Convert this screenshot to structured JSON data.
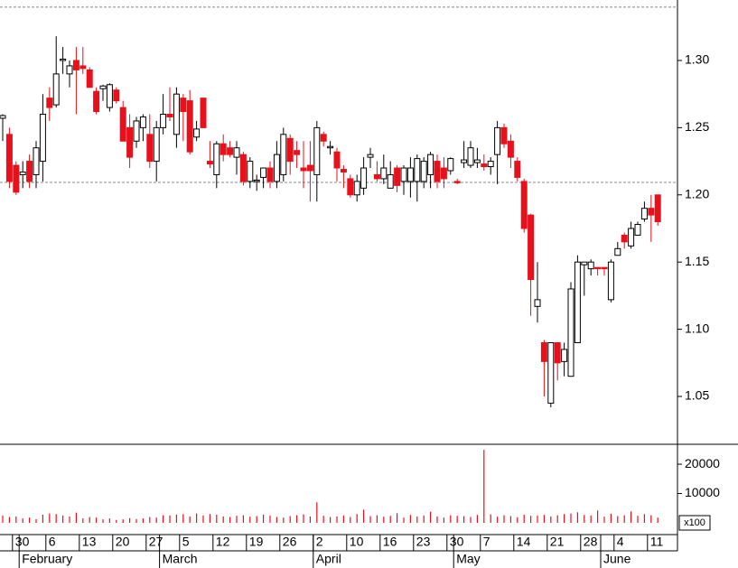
{
  "chart_data": {
    "type": "candlestick",
    "categories": [
      null,
      null,
      "30",
      null,
      null,
      null,
      null,
      "6",
      null,
      null,
      null,
      null,
      "13",
      null,
      null,
      null,
      null,
      "20",
      null,
      null,
      null,
      null,
      "27",
      null,
      null,
      null,
      null,
      "5",
      null,
      null,
      null,
      null,
      "12",
      null,
      null,
      null,
      null,
      "19",
      null,
      null,
      null,
      null,
      "26",
      null,
      null,
      null,
      null,
      "2",
      null,
      null,
      null,
      null,
      "10",
      null,
      null,
      null,
      null,
      "16",
      null,
      null,
      null,
      null,
      "23",
      null,
      null,
      null,
      null,
      "30",
      null,
      null,
      null,
      null,
      "7",
      null,
      null,
      null,
      null,
      "14",
      null,
      null,
      null,
      null,
      "21",
      null,
      null,
      null,
      null,
      "28",
      null,
      null,
      null,
      null,
      "4",
      null,
      null,
      null,
      null,
      "11",
      null
    ],
    "months": [
      null,
      null,
      null,
      "February",
      null,
      null,
      null,
      null,
      null,
      null,
      null,
      null,
      null,
      null,
      null,
      null,
      null,
      null,
      null,
      null,
      null,
      null,
      null,
      null,
      "March",
      null,
      null,
      null,
      null,
      null,
      null,
      null,
      null,
      null,
      null,
      null,
      null,
      null,
      null,
      null,
      null,
      null,
      null,
      null,
      null,
      null,
      null,
      "April",
      null,
      null,
      null,
      null,
      null,
      null,
      null,
      null,
      null,
      null,
      null,
      null,
      null,
      null,
      null,
      null,
      null,
      null,
      null,
      null,
      "May",
      null,
      null,
      null,
      null,
      null,
      null,
      null,
      null,
      null,
      null,
      null,
      null,
      null,
      null,
      null,
      null,
      null,
      null,
      null,
      null,
      null,
      "June",
      null,
      null,
      null,
      null,
      null,
      null,
      null,
      null
    ],
    "open": [
      1.257,
      1.245,
      1.222,
      1.215,
      1.225,
      1.215,
      1.225,
      1.272,
      1.267,
      1.3,
      1.29,
      1.3,
      1.296,
      1.293,
      1.277,
      1.279,
      1.265,
      1.278,
      1.265,
      1.25,
      1.24,
      1.25,
      1.245,
      1.225,
      1.25,
      1.26,
      1.245,
      1.272,
      1.27,
      1.243,
      1.272,
      1.225,
      1.215,
      1.238,
      1.235,
      1.228,
      1.23,
      1.21,
      1.21,
      1.213,
      1.22,
      1.21,
      1.215,
      1.242,
      1.233,
      1.22,
      1.222,
      1.215,
      1.245,
      1.235,
      1.232,
      1.219,
      1.212,
      1.2,
      1.205,
      1.228,
      1.215,
      1.212,
      1.205,
      1.22,
      1.21,
      1.21,
      1.21,
      1.21,
      1.215,
      1.225,
      1.22,
      1.218,
      1.21,
      1.224,
      1.222,
      1.224,
      1.223,
      1.221,
      1.23,
      1.25,
      1.24,
      1.225,
      1.21,
      1.185,
      1.117,
      1.09,
      1.045,
      1.09,
      1.076,
      1.065,
      1.09,
      1.148,
      1.145,
      1.146,
      1.146,
      1.122,
      1.155,
      1.17,
      1.162,
      1.17,
      1.182,
      1.19,
      1.2
    ],
    "high": [
      1.26,
      1.25,
      1.225,
      1.225,
      1.23,
      1.24,
      1.275,
      1.28,
      1.318,
      1.31,
      1.3,
      1.31,
      1.31,
      1.295,
      1.28,
      1.282,
      1.283,
      1.28,
      1.27,
      1.26,
      1.258,
      1.26,
      1.26,
      1.255,
      1.275,
      1.28,
      1.28,
      1.275,
      1.278,
      1.255,
      1.272,
      1.24,
      1.24,
      1.245,
      1.24,
      1.24,
      1.232,
      1.228,
      1.215,
      1.22,
      1.225,
      1.24,
      1.25,
      1.245,
      1.24,
      1.24,
      1.24,
      1.255,
      1.247,
      1.24,
      1.235,
      1.222,
      1.215,
      1.215,
      1.228,
      1.235,
      1.225,
      1.23,
      1.225,
      1.222,
      1.222,
      1.228,
      1.23,
      1.228,
      1.232,
      1.23,
      1.228,
      1.228,
      1.212,
      1.24,
      1.24,
      1.235,
      1.23,
      1.228,
      1.255,
      1.253,
      1.245,
      1.228,
      1.212,
      1.186,
      1.15,
      1.092,
      1.09,
      1.09,
      1.09,
      1.135,
      1.155,
      1.15,
      1.152,
      1.146,
      1.146,
      1.152,
      1.165,
      1.172,
      1.18,
      1.18,
      1.195,
      1.2,
      1.2
    ],
    "low": [
      1.24,
      1.205,
      1.2,
      1.205,
      1.205,
      1.205,
      1.21,
      1.255,
      1.265,
      1.29,
      1.28,
      1.26,
      1.29,
      1.28,
      1.26,
      1.27,
      1.262,
      1.268,
      1.24,
      1.22,
      1.235,
      1.24,
      1.22,
      1.21,
      1.245,
      1.255,
      1.235,
      1.24,
      1.23,
      1.24,
      1.25,
      1.22,
      1.205,
      1.225,
      1.228,
      1.215,
      1.207,
      1.205,
      1.203,
      1.205,
      1.205,
      1.205,
      1.21,
      1.215,
      1.22,
      1.205,
      1.195,
      1.195,
      1.236,
      1.23,
      1.21,
      1.205,
      1.198,
      1.195,
      1.2,
      1.22,
      1.21,
      1.208,
      1.205,
      1.202,
      1.2,
      1.198,
      1.195,
      1.205,
      1.205,
      1.205,
      1.205,
      1.215,
      1.208,
      1.22,
      1.22,
      1.22,
      1.218,
      1.215,
      1.208,
      1.235,
      1.22,
      1.21,
      1.172,
      1.11,
      1.105,
      1.05,
      1.042,
      1.062,
      1.065,
      1.065,
      1.09,
      1.125,
      1.14,
      1.14,
      1.14,
      1.12,
      1.155,
      1.16,
      1.16,
      1.17,
      1.18,
      1.165,
      1.177
    ],
    "close": [
      1.259,
      1.21,
      1.202,
      1.217,
      1.21,
      1.235,
      1.26,
      1.265,
      1.29,
      1.301,
      1.296,
      1.293,
      1.294,
      1.28,
      1.262,
      1.281,
      1.282,
      1.27,
      1.24,
      1.228,
      1.255,
      1.258,
      1.225,
      1.25,
      1.26,
      1.258,
      1.275,
      1.262,
      1.232,
      1.249,
      1.25,
      1.223,
      1.238,
      1.23,
      1.23,
      1.235,
      1.21,
      1.225,
      1.211,
      1.22,
      1.21,
      1.23,
      1.245,
      1.225,
      1.23,
      1.218,
      1.218,
      1.25,
      1.24,
      1.236,
      1.22,
      1.217,
      1.2,
      1.21,
      1.22,
      1.23,
      1.212,
      1.22,
      1.215,
      1.207,
      1.22,
      1.22,
      1.227,
      1.225,
      1.23,
      1.21,
      1.212,
      1.227,
      1.209,
      1.226,
      1.235,
      1.226,
      1.221,
      1.225,
      1.25,
      1.238,
      1.228,
      1.213,
      1.175,
      1.137,
      1.122,
      1.076,
      1.09,
      1.075,
      1.085,
      1.13,
      1.15,
      1.15,
      1.15,
      1.145,
      1.145,
      1.15,
      1.16,
      1.165,
      1.175,
      1.178,
      1.19,
      1.185,
      1.18
    ],
    "volume": [
      2500,
      2000,
      2200,
      1500,
      1800,
      1300,
      2800,
      3200,
      3000,
      2500,
      2200,
      3500,
      1500,
      2000,
      1800,
      1200,
      1500,
      1000,
      1200,
      1600,
      1300,
      1500,
      2000,
      1800,
      2600,
      2500,
      2800,
      3000,
      2200,
      3200,
      2500,
      3000,
      2800,
      2200,
      2000,
      2400,
      2600,
      2100,
      2300,
      2800,
      2500,
      2000,
      1800,
      2300,
      2600,
      2900,
      2200,
      7000,
      2400,
      2000,
      2200,
      2500,
      2000,
      3000,
      4500,
      2300,
      2600,
      2100,
      2400,
      3300,
      1800,
      2700,
      2200,
      2500,
      3800,
      2200,
      1800,
      2600,
      2400,
      2300,
      2000,
      2700,
      24900,
      2900,
      2100,
      2600,
      2300,
      1900,
      2800,
      2400,
      2500,
      2700,
      2200,
      2600,
      3000,
      3200,
      3600,
      2700,
      2500,
      4200,
      2100,
      3100,
      2300,
      2600,
      3900,
      2400,
      3000,
      2600,
      1800
    ],
    "up_color": "#ffffff",
    "down_color": "#e8101a",
    "volume_color": "#e8101a",
    "ylim": [
      1.0144,
      1.345
    ],
    "yticks": [
      1.05,
      {
        "value": 1.1,
        "label": "1.10"
      },
      1.15,
      {
        "value": 1.2,
        "label": "1.20"
      },
      1.25,
      {
        "value": 1.3,
        "label": "1.30"
      }
    ],
    "reference_lines": [
      1.3397,
      1.2093
    ],
    "volume_ylim": [
      0,
      26800
    ],
    "volume_yticks": [
      10000,
      20000
    ],
    "volume_unit_label": "x100"
  }
}
